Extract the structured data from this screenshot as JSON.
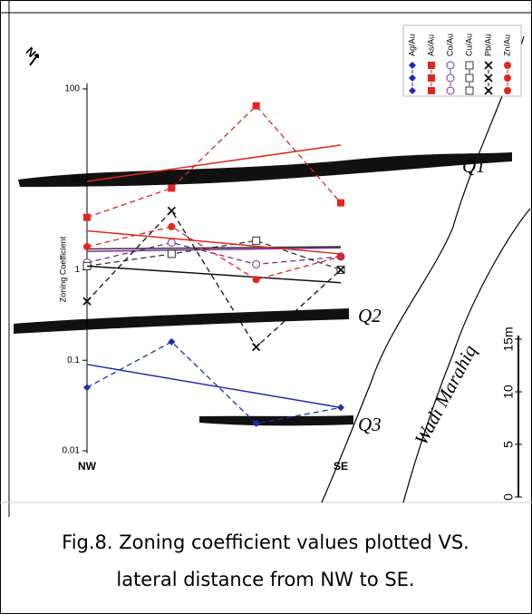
{
  "chart_data": {
    "type": "line",
    "y_label": "Zoning Coefficient",
    "categories": [
      "NW",
      null,
      null,
      "SE"
    ],
    "ylim": [
      0.01,
      100
    ],
    "yticks": [
      0.01,
      0.1,
      1,
      10,
      100
    ],
    "log_scale": true,
    "series": [
      {
        "name": "Ag/Au",
        "color": "#1a2fb0",
        "marker": "diamond",
        "values": [
          0.05,
          0.16,
          0.02,
          0.03
        ],
        "trend": [
          0.09,
          0.03
        ]
      },
      {
        "name": "As/Au",
        "color": "#e0261f",
        "marker": "square",
        "values": [
          3.8,
          8,
          65,
          5.5
        ],
        "trend": [
          9.5,
          24
        ]
      },
      {
        "name": "Co/Au",
        "color": "#7a2aa0",
        "marker": "open-circle",
        "values": [
          1.2,
          2,
          1.15,
          1.4
        ],
        "trend": [
          1.6,
          1.75
        ]
      },
      {
        "name": "Cu/Au",
        "color": "#333333",
        "marker": "open-square",
        "values": [
          1.1,
          1.5,
          2.1,
          1.0
        ],
        "trend": [
          1.7,
          1.8
        ]
      },
      {
        "name": "Pb/Au",
        "color": "#111111",
        "marker": "x",
        "values": [
          0.45,
          4.5,
          0.14,
          1.0
        ],
        "trend": [
          1.1,
          0.72
        ]
      },
      {
        "name": "Zn/Au",
        "color": "#e0261f",
        "marker": "circle",
        "values": [
          1.8,
          3,
          0.78,
          1.4
        ],
        "trend": [
          2.7,
          1.5
        ]
      }
    ]
  },
  "map": {
    "q1": "Q1",
    "q2": "Q2",
    "q3": "Q3",
    "wadi": "Wadi Marahiq",
    "north": "N",
    "scale": [
      "0",
      "5",
      "10",
      "15m"
    ]
  },
  "caption": [
    "Fig.8. Zoning coefficient values plotted VS.",
    "lateral distance from NW to SE."
  ]
}
